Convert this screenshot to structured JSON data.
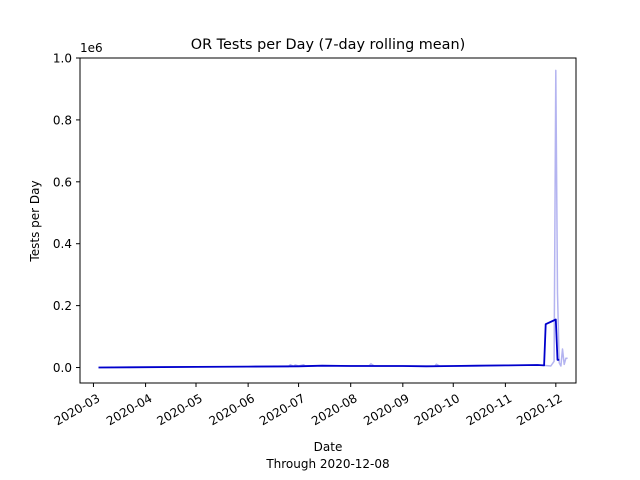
{
  "chart_data": {
    "type": "line",
    "title": "OR Tests per Day (7-day rolling mean)",
    "xlabel": "Date",
    "xlabel_sub": "Through 2020-12-08",
    "ylabel": "Tests per Day",
    "y_offset_label": "1e6",
    "xlim": [
      "2020-02-22",
      "2020-12-13"
    ],
    "ylim": [
      -0.05,
      1.0
    ],
    "y_ticks": [
      0.0,
      0.2,
      0.4,
      0.6,
      0.8,
      1.0
    ],
    "y_tick_labels": [
      "0.0",
      "0.2",
      "0.4",
      "0.6",
      "0.8",
      "1.0"
    ],
    "x_ticks": [
      "2020-03-01",
      "2020-04-01",
      "2020-05-01",
      "2020-06-01",
      "2020-07-01",
      "2020-08-01",
      "2020-09-01",
      "2020-10-01",
      "2020-11-01",
      "2020-12-01"
    ],
    "x_tick_labels": [
      "2020-03",
      "2020-04",
      "2020-05",
      "2020-06",
      "2020-07",
      "2020-08",
      "2020-09",
      "2020-10",
      "2020-11",
      "2020-12"
    ],
    "grid": false,
    "series": [
      {
        "color": "#b4b4f0",
        "style": "daily",
        "x": [
          "2020-03-04",
          "2020-04-01",
          "2020-05-01",
          "2020-06-01",
          "2020-06-25",
          "2020-06-26",
          "2020-06-28",
          "2020-06-29",
          "2020-07-01",
          "2020-07-04",
          "2020-07-05",
          "2020-07-12",
          "2020-08-01",
          "2020-08-12",
          "2020-08-13",
          "2020-08-15",
          "2020-09-01",
          "2020-09-20",
          "2020-09-21",
          "2020-09-23",
          "2020-10-01",
          "2020-10-20",
          "2020-11-01",
          "2020-11-20",
          "2020-11-24",
          "2020-11-28",
          "2020-11-30",
          "2020-12-01",
          "2020-12-02",
          "2020-12-03",
          "2020-12-04",
          "2020-12-05",
          "2020-12-06",
          "2020-12-07",
          "2020-12-08"
        ],
        "y": [
          0.0,
          0.001,
          0.002,
          0.003,
          0.003,
          0.009,
          0.004,
          0.008,
          0.005,
          0.009,
          0.005,
          0.006,
          0.006,
          0.006,
          0.012,
          0.005,
          0.005,
          0.004,
          0.011,
          0.004,
          0.005,
          0.006,
          0.007,
          0.008,
          0.007,
          0.005,
          0.02,
          0.96,
          0.24,
          0.015,
          0.005,
          0.06,
          0.01,
          0.03,
          0.03
        ]
      },
      {
        "color": "#0000cc",
        "style": "rolling-mean",
        "x": [
          "2020-03-04",
          "2020-04-01",
          "2020-05-01",
          "2020-06-01",
          "2020-07-01",
          "2020-07-15",
          "2020-08-01",
          "2020-09-01",
          "2020-09-15",
          "2020-10-01",
          "2020-10-15",
          "2020-11-01",
          "2020-11-20",
          "2020-11-24",
          "2020-11-25",
          "2020-12-01",
          "2020-12-02",
          "2020-12-03"
        ],
        "y": [
          0.0,
          0.001,
          0.002,
          0.003,
          0.004,
          0.006,
          0.005,
          0.005,
          0.004,
          0.005,
          0.006,
          0.007,
          0.008,
          0.007,
          0.14,
          0.155,
          0.025,
          0.025
        ]
      }
    ]
  }
}
